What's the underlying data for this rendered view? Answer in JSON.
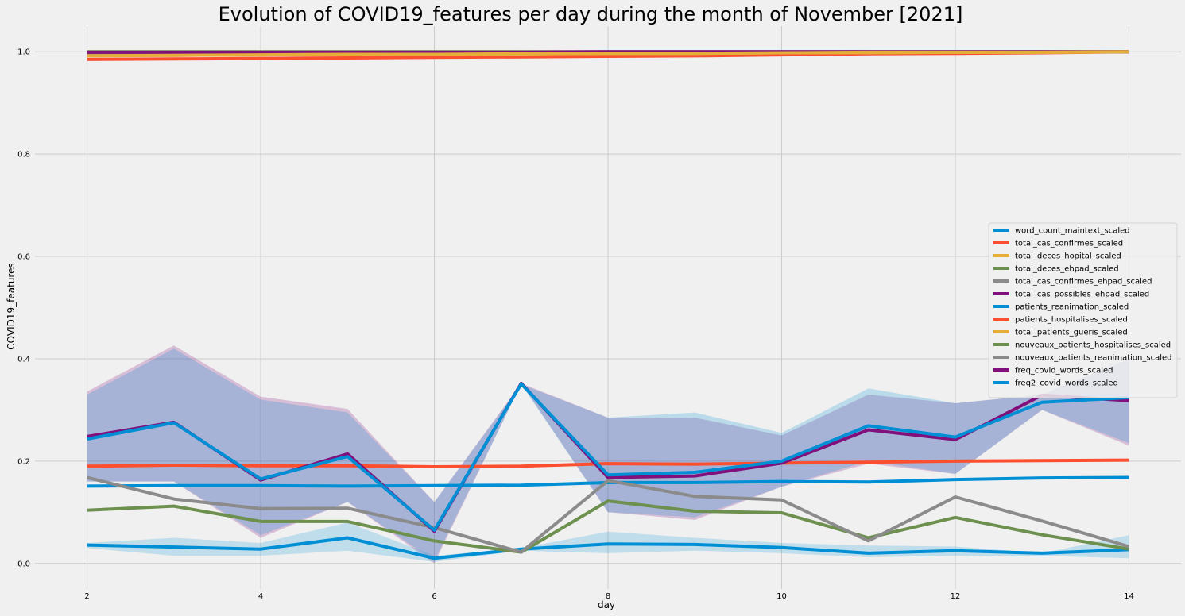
{
  "chart_data": {
    "type": "line",
    "title": "Evolution of COVID19_features per day during the month of November [2021]",
    "xlabel": "day",
    "ylabel": "COVID19_features",
    "xlim": [
      1.4,
      14.6
    ],
    "ylim": [
      -0.05,
      1.05
    ],
    "xticks": [
      2,
      4,
      6,
      8,
      10,
      12,
      14
    ],
    "yticks": [
      0.0,
      0.2,
      0.4,
      0.6,
      0.8,
      1.0
    ],
    "grid": true,
    "legend_position": "center-right",
    "colors": {
      "background": "#f0f0f0",
      "grid": "#cbcbcb"
    },
    "x": [
      2,
      3,
      4,
      5,
      6,
      7,
      8,
      9,
      10,
      11,
      12,
      13,
      14
    ],
    "bands": [
      {
        "name": "freq_covid_words_scaled",
        "color": "#810f7c",
        "opacity": 0.22,
        "lower": [
          0.16,
          0.16,
          0.05,
          0.12,
          0.0,
          0.352,
          0.1,
          0.085,
          0.15,
          0.195,
          0.175,
          0.3,
          0.23
        ],
        "upper": [
          0.336,
          0.426,
          0.326,
          0.302,
          0.12,
          0.352,
          0.285,
          0.285,
          0.25,
          0.33,
          0.313,
          0.33,
          0.4
        ]
      },
      {
        "name": "freq2_covid_words_scaled",
        "color": "#008fd5",
        "opacity": 0.22,
        "lower": [
          0.16,
          0.16,
          0.055,
          0.12,
          0.005,
          0.35,
          0.1,
          0.09,
          0.15,
          0.2,
          0.175,
          0.3,
          0.235
        ],
        "upper": [
          0.33,
          0.42,
          0.32,
          0.295,
          0.12,
          0.35,
          0.285,
          0.295,
          0.255,
          0.342,
          0.313,
          0.33,
          0.4
        ]
      },
      {
        "name": "word_count_maintext_scaled",
        "color": "#008fd5",
        "opacity": 0.2,
        "lower": [
          0.03,
          0.015,
          0.015,
          0.025,
          0.003,
          0.025,
          0.02,
          0.025,
          0.02,
          0.012,
          0.015,
          0.015,
          0.01
        ],
        "upper": [
          0.04,
          0.05,
          0.04,
          0.08,
          0.015,
          0.03,
          0.062,
          0.05,
          0.04,
          0.035,
          0.033,
          0.02,
          0.055
        ]
      }
    ],
    "series": [
      {
        "name": "word_count_maintext_scaled",
        "color": "#008fd5",
        "values": [
          0.036,
          0.032,
          0.028,
          0.05,
          0.01,
          0.028,
          0.038,
          0.037,
          0.031,
          0.02,
          0.025,
          0.02,
          0.027
        ]
      },
      {
        "name": "total_cas_confirmes_scaled",
        "color": "#fc4f30",
        "values": [
          0.985,
          0.986,
          0.987,
          0.988,
          0.989,
          0.99,
          0.991,
          0.992,
          0.994,
          0.996,
          0.997,
          0.998,
          1.0
        ]
      },
      {
        "name": "total_deces_hopital_scaled",
        "color": "#e5ae38",
        "values": [
          0.993,
          0.993,
          0.994,
          0.995,
          0.995,
          0.996,
          0.997,
          0.997,
          0.998,
          0.998,
          0.999,
          0.999,
          1.0
        ]
      },
      {
        "name": "total_deces_ehpad_scaled",
        "color": "#6d904f",
        "values": [
          1.0,
          1.0,
          1.0,
          1.0,
          1.0,
          1.0,
          1.0,
          1.0,
          1.0,
          1.0,
          1.0,
          1.0,
          1.0
        ]
      },
      {
        "name": "total_cas_confirmes_ehpad_scaled",
        "color": "#8b8b8b",
        "values": [
          0.997,
          0.997,
          0.998,
          0.998,
          0.998,
          0.999,
          0.999,
          0.999,
          0.999,
          1.0,
          1.0,
          1.0,
          1.0
        ]
      },
      {
        "name": "total_cas_possibles_ehpad_scaled",
        "color": "#810f7c",
        "values": [
          0.999,
          0.999,
          0.999,
          0.999,
          0.999,
          0.999,
          1.0,
          1.0,
          1.0,
          1.0,
          1.0,
          1.0,
          1.0
        ]
      },
      {
        "name": "patients_reanimation_scaled",
        "color": "#008fd5",
        "values": [
          0.151,
          0.152,
          0.152,
          0.151,
          0.152,
          0.153,
          0.158,
          0.158,
          0.16,
          0.159,
          0.164,
          0.167,
          0.168
        ]
      },
      {
        "name": "patients_hospitalises_scaled",
        "color": "#fc4f30",
        "values": [
          0.19,
          0.192,
          0.191,
          0.191,
          0.189,
          0.19,
          0.195,
          0.194,
          0.196,
          0.198,
          0.2,
          0.201,
          0.202
        ]
      },
      {
        "name": "total_patients_gueris_scaled",
        "color": "#e5ae38",
        "values": [
          0.992,
          0.993,
          0.994,
          0.995,
          0.995,
          0.996,
          0.997,
          0.997,
          0.998,
          0.999,
          0.999,
          0.999,
          1.0
        ]
      },
      {
        "name": "nouveaux_patients_hospitalises_scaled",
        "color": "#6d904f",
        "values": [
          0.104,
          0.112,
          0.082,
          0.082,
          0.044,
          0.022,
          0.122,
          0.102,
          0.099,
          0.05,
          0.09,
          0.056,
          0.028
        ]
      },
      {
        "name": "nouveaux_patients_reanimation_scaled",
        "color": "#8b8b8b",
        "values": [
          0.168,
          0.126,
          0.107,
          0.108,
          0.07,
          0.022,
          0.162,
          0.131,
          0.124,
          0.044,
          0.13,
          0.083,
          0.033
        ]
      },
      {
        "name": "freq_covid_words_scaled",
        "color": "#810f7c",
        "values": [
          0.248,
          0.276,
          0.163,
          0.214,
          0.063,
          0.352,
          0.168,
          0.171,
          0.196,
          0.261,
          0.242,
          0.329,
          0.318
        ]
      },
      {
        "name": "freq2_covid_words_scaled",
        "color": "#008fd5",
        "values": [
          0.243,
          0.275,
          0.165,
          0.209,
          0.065,
          0.351,
          0.173,
          0.178,
          0.2,
          0.269,
          0.247,
          0.315,
          0.324
        ]
      }
    ]
  }
}
